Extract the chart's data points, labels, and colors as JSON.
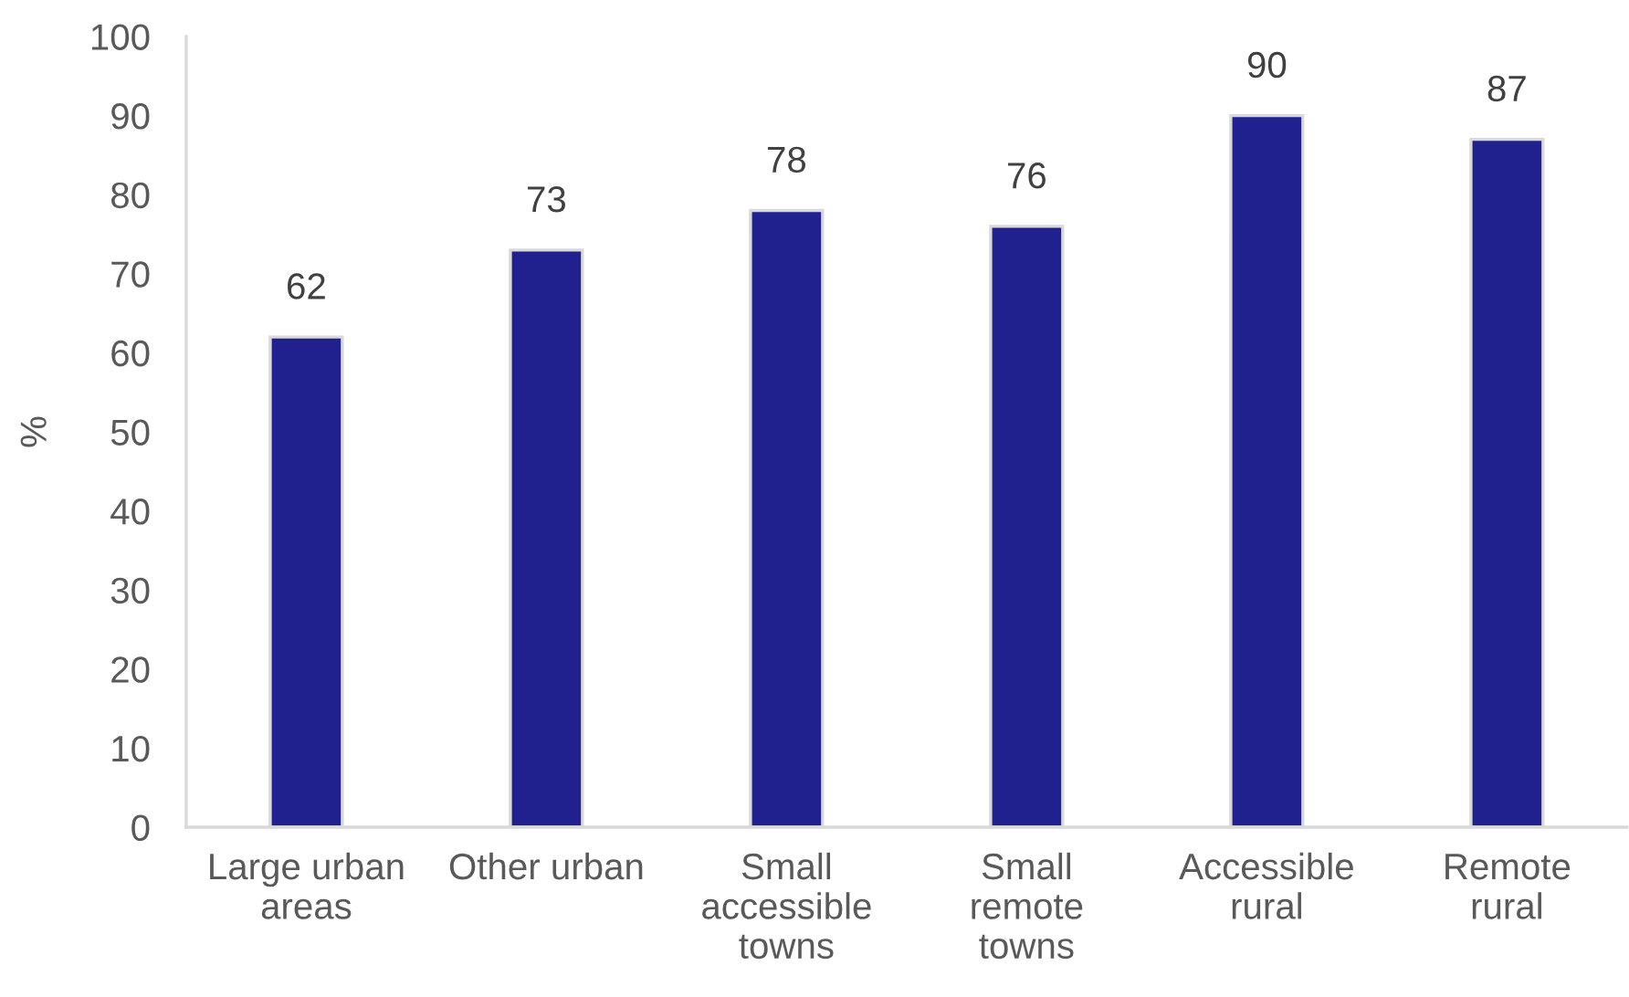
{
  "chart_data": {
    "type": "bar",
    "categories": [
      "Large urban\nareas",
      "Other urban",
      "Small\naccessible\ntowns",
      "Small\nremote\ntowns",
      "Accessible\nrural",
      "Remote\nrural"
    ],
    "values": [
      62,
      73,
      78,
      76,
      90,
      87
    ],
    "color": "#21208f",
    "ylabel": "%",
    "ylim": [
      0,
      100
    ],
    "yticks": [
      0,
      10,
      20,
      30,
      40,
      50,
      60,
      70,
      80,
      90,
      100
    ],
    "data_labels": true,
    "grid": false,
    "legend": false
  }
}
